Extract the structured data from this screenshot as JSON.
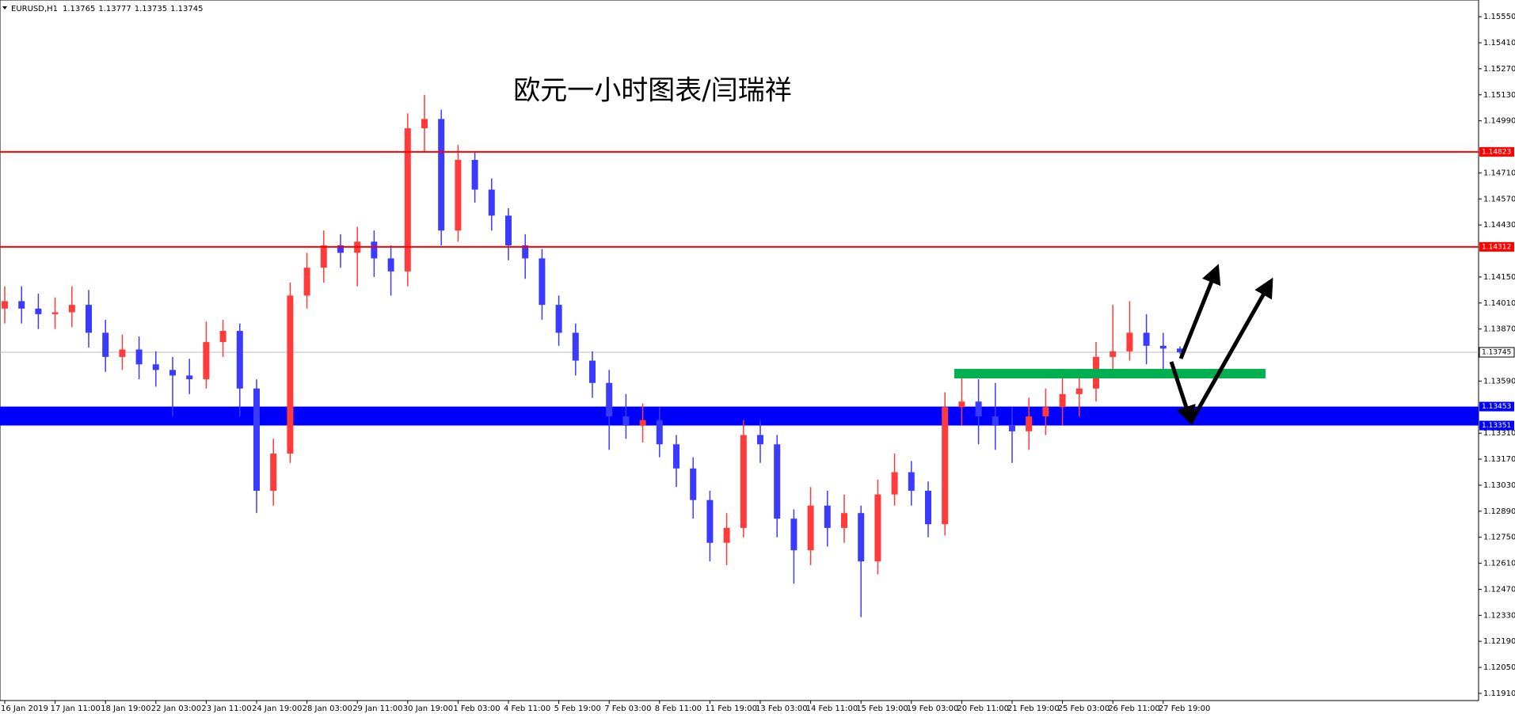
{
  "chart_data": {
    "type": "candlestick",
    "title": "欧元一小时图表/闫瑞祥",
    "symbol": "EURUSD,H1",
    "categories": [
      "16 Jan 2019",
      null,
      null,
      "17 Jan 11:00",
      null,
      null,
      "18 Jan 19:00",
      null,
      null,
      "22 Jan 03:00",
      null,
      null,
      "23 Jan 11:00",
      null,
      null,
      "24 Jan 19:00",
      null,
      null,
      "28 Jan 03:00",
      null,
      null,
      "29 Jan 11:00",
      null,
      null,
      "30 Jan 19:00",
      null,
      null,
      "1 Feb 03:00",
      null,
      null,
      "4 Feb 11:00",
      null,
      null,
      "5 Feb 19:00",
      null,
      null,
      "7 Feb 03:00",
      null,
      null,
      "8 Feb 11:00",
      null,
      null,
      "11 Feb 19:00",
      null,
      null,
      "13 Feb 03:00",
      null,
      null,
      "14 Feb 11:00",
      null,
      null,
      "15 Feb 19:00",
      null,
      null,
      "19 Feb 03:00",
      null,
      null,
      "20 Feb 11:00",
      null,
      null,
      "21 Feb 19:00",
      null,
      null,
      "25 Feb 03:00",
      null,
      null,
      "26 Feb 11:00",
      null,
      null,
      "27 Feb 19:00",
      null
    ],
    "open": [
      1.1398,
      1.1402,
      1.1398,
      1.1395,
      1.1396,
      1.14,
      1.1385,
      1.1372,
      1.1376,
      1.1368,
      1.1365,
      1.1362,
      1.136,
      1.138,
      1.1386,
      1.1355,
      1.13,
      1.132,
      1.1405,
      1.142,
      1.1432,
      1.1428,
      1.1434,
      1.1425,
      1.1418,
      1.1495,
      1.15,
      1.144,
      1.1478,
      1.1462,
      1.1448,
      1.1432,
      1.1425,
      1.14,
      1.1385,
      1.137,
      1.1358,
      1.134,
      1.1335,
      1.1338,
      1.1325,
      1.1312,
      1.1295,
      1.1272,
      1.128,
      1.133,
      1.1325,
      1.1285,
      1.1268,
      1.1292,
      1.128,
      1.1288,
      1.1262,
      1.1298,
      1.131,
      1.13,
      1.1282,
      1.1345,
      1.1348,
      1.134,
      1.1335,
      1.1332,
      1.134,
      1.1345,
      1.1352,
      1.1355,
      1.1372,
      1.1375,
      1.1385,
      1.1378,
      1.13765
    ],
    "high": [
      1.141,
      1.141,
      1.1406,
      1.1404,
      1.141,
      1.1408,
      1.1392,
      1.1384,
      1.1383,
      1.1375,
      1.1372,
      1.1371,
      1.1391,
      1.1392,
      1.139,
      1.136,
      1.1328,
      1.1412,
      1.1428,
      1.144,
      1.1438,
      1.1442,
      1.144,
      1.1432,
      1.1503,
      1.1513,
      1.1505,
      1.1486,
      1.1482,
      1.1468,
      1.1452,
      1.1438,
      1.143,
      1.1405,
      1.139,
      1.1375,
      1.1365,
      1.1352,
      1.1347,
      1.1345,
      1.133,
      1.1318,
      1.13,
      1.1288,
      1.1338,
      1.1338,
      1.133,
      1.129,
      1.1302,
      1.13,
      1.1298,
      1.1292,
      1.1306,
      1.132,
      1.1316,
      1.1305,
      1.1353,
      1.1362,
      1.136,
      1.1358,
      1.1345,
      1.135,
      1.1355,
      1.1362,
      1.1362,
      1.138,
      1.14,
      1.1402,
      1.1395,
      1.1385,
      1.13777
    ],
    "low": [
      1.139,
      1.139,
      1.1387,
      1.1387,
      1.1388,
      1.1377,
      1.1364,
      1.1365,
      1.136,
      1.1356,
      1.134,
      1.1352,
      1.1355,
      1.1372,
      1.134,
      1.1288,
      1.1292,
      1.1315,
      1.1398,
      1.1412,
      1.142,
      1.141,
      1.1415,
      1.1405,
      1.141,
      1.1482,
      1.1432,
      1.1434,
      1.1455,
      1.144,
      1.1424,
      1.1414,
      1.1392,
      1.1378,
      1.1362,
      1.135,
      1.1322,
      1.1328,
      1.1326,
      1.1318,
      1.1302,
      1.1285,
      1.1262,
      1.126,
      1.1275,
      1.1315,
      1.1275,
      1.125,
      1.126,
      1.127,
      1.1272,
      1.1232,
      1.1255,
      1.1292,
      1.1292,
      1.1275,
      1.1276,
      1.1335,
      1.1325,
      1.1322,
      1.1315,
      1.1322,
      1.133,
      1.1335,
      1.134,
      1.1348,
      1.1365,
      1.137,
      1.1368,
      1.1365,
      1.13735
    ],
    "close": [
      1.1402,
      1.1398,
      1.1395,
      1.1396,
      1.14,
      1.1385,
      1.1372,
      1.1376,
      1.1368,
      1.1365,
      1.1362,
      1.136,
      1.138,
      1.1386,
      1.1355,
      1.13,
      1.132,
      1.1405,
      1.142,
      1.1432,
      1.1428,
      1.1434,
      1.1425,
      1.1418,
      1.1495,
      1.15,
      1.144,
      1.1478,
      1.1462,
      1.1448,
      1.1432,
      1.1425,
      1.14,
      1.1385,
      1.137,
      1.1358,
      1.134,
      1.1335,
      1.1338,
      1.1325,
      1.1312,
      1.1295,
      1.1272,
      1.128,
      1.133,
      1.1325,
      1.1285,
      1.1268,
      1.1292,
      1.128,
      1.1288,
      1.1262,
      1.1298,
      1.131,
      1.13,
      1.1282,
      1.1345,
      1.1348,
      1.134,
      1.1335,
      1.1332,
      1.134,
      1.1345,
      1.1352,
      1.1355,
      1.1372,
      1.1375,
      1.1385,
      1.1378,
      1.13765,
      1.13745
    ],
    "up_color": "#ff3b3b",
    "down_color": "#3b3bff",
    "ylim": [
      1.1188,
      1.1564
    ],
    "yticks": [
      {
        "value": 1.1555,
        "label": "1.15550"
      },
      {
        "value": 1.1541,
        "label": "1.15410"
      },
      {
        "value": 1.1527,
        "label": "1.15270"
      },
      {
        "value": 1.1513,
        "label": "1.15130"
      },
      {
        "value": 1.1499,
        "label": "1.14990"
      },
      {
        "value": 1.1471,
        "label": "1.14710"
      },
      {
        "value": 1.1457,
        "label": "1.14570"
      },
      {
        "value": 1.1443,
        "label": "1.14430"
      },
      {
        "value": 1.1415,
        "label": "1.14150"
      },
      {
        "value": 1.1401,
        "label": "1.14010"
      },
      {
        "value": 1.1387,
        "label": "1.13870"
      },
      {
        "value": 1.1359,
        "label": "1.13590"
      },
      {
        "value": 1.1331,
        "label": "1.13310"
      },
      {
        "value": 1.1317,
        "label": "1.13170"
      },
      {
        "value": 1.1303,
        "label": "1.13030"
      },
      {
        "value": 1.1289,
        "label": "1.12890"
      },
      {
        "value": 1.1275,
        "label": "1.12750"
      },
      {
        "value": 1.1261,
        "label": "1.12610"
      },
      {
        "value": 1.1247,
        "label": "1.12470"
      },
      {
        "value": 1.1233,
        "label": "1.12330"
      },
      {
        "value": 1.1219,
        "label": "1.12190"
      },
      {
        "value": 1.1205,
        "label": "1.12050"
      },
      {
        "value": 1.1191,
        "label": "1.11910"
      }
    ],
    "levels": [
      {
        "value": 1.14823,
        "color": "#ff0000"
      },
      {
        "value": 1.14312,
        "color": "#ff0000"
      }
    ],
    "zone": {
      "low": 1.13351,
      "high": 1.13453,
      "color": "#0000ff"
    },
    "support": {
      "value": 1.1363,
      "color": "#00b050"
    },
    "grid": false
  }
}
